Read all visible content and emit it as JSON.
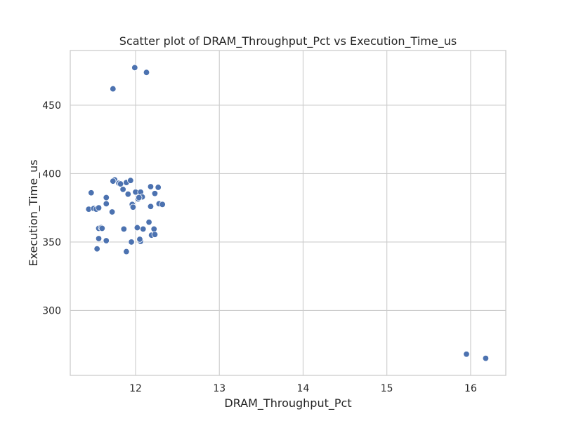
{
  "chart_data": {
    "type": "scatter",
    "title": "Scatter plot of DRAM_Throughput_Pct vs Execution_Time_us",
    "xlabel": "DRAM_Throughput_Pct",
    "ylabel": "Execution_Time_us",
    "xlim": [
      11.22,
      16.42
    ],
    "ylim": [
      252.5,
      490
    ],
    "xticks": [
      12,
      13,
      14,
      15,
      16
    ],
    "yticks": [
      300,
      350,
      400,
      450
    ],
    "grid": true,
    "point_color": "#4c72b0",
    "points": [
      [
        11.99,
        477.5
      ],
      [
        12.13,
        474.0
      ],
      [
        11.73,
        462.0
      ],
      [
        11.75,
        395.5
      ],
      [
        11.73,
        394.5
      ],
      [
        11.8,
        393.0
      ],
      [
        11.82,
        392.5
      ],
      [
        11.89,
        393.5
      ],
      [
        11.94,
        395.0
      ],
      [
        11.47,
        386.0
      ],
      [
        11.85,
        388.5
      ],
      [
        11.91,
        385.0
      ],
      [
        12.0,
        386.5
      ],
      [
        12.06,
        386.5
      ],
      [
        12.18,
        390.5
      ],
      [
        12.27,
        390.0
      ],
      [
        12.23,
        385.5
      ],
      [
        12.08,
        383.0
      ],
      [
        12.03,
        381.5
      ],
      [
        12.04,
        382.5
      ],
      [
        11.65,
        382.5
      ],
      [
        11.65,
        378.0
      ],
      [
        11.96,
        377.5
      ],
      [
        11.97,
        375.5
      ],
      [
        12.28,
        378.0
      ],
      [
        12.32,
        377.5
      ],
      [
        12.18,
        376.0
      ],
      [
        11.44,
        374.0
      ],
      [
        11.5,
        374.5
      ],
      [
        11.53,
        374.0
      ],
      [
        11.56,
        375.0
      ],
      [
        11.72,
        372.0
      ],
      [
        12.16,
        364.5
      ],
      [
        11.56,
        360.0
      ],
      [
        11.59,
        360.5
      ],
      [
        11.6,
        360.0
      ],
      [
        11.86,
        359.5
      ],
      [
        12.02,
        360.5
      ],
      [
        12.09,
        359.5
      ],
      [
        12.22,
        359.5
      ],
      [
        12.19,
        355.0
      ],
      [
        12.23,
        355.5
      ],
      [
        11.56,
        352.5
      ],
      [
        11.65,
        351.0
      ],
      [
        11.95,
        350.0
      ],
      [
        12.06,
        350.5
      ],
      [
        12.05,
        352.0
      ],
      [
        11.54,
        345.0
      ],
      [
        11.89,
        343.0
      ],
      [
        15.95,
        268.0
      ],
      [
        16.18,
        265.0
      ]
    ]
  }
}
